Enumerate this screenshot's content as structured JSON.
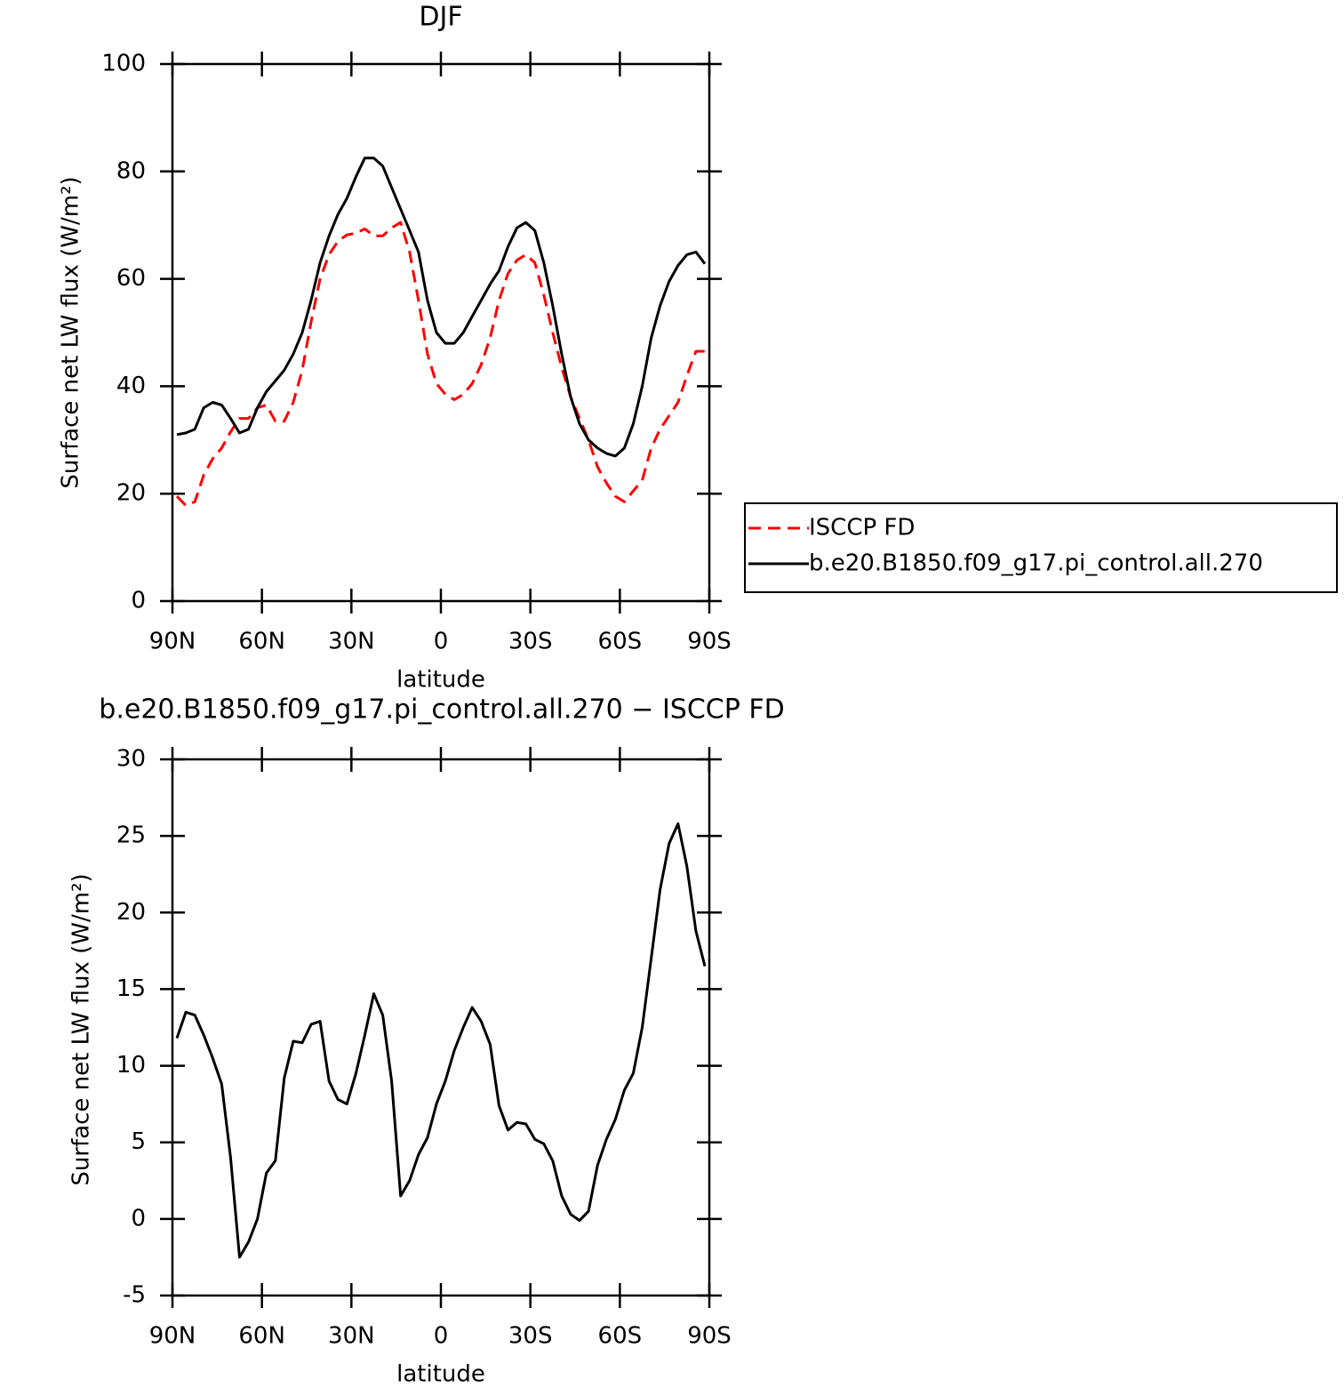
{
  "chart_data": [
    {
      "type": "line",
      "title": "DJF",
      "xlabel": "latitude",
      "ylabel": "Surface net LW flux (W/m²)",
      "x": [
        88.5,
        85.5,
        82.5,
        79.5,
        76.5,
        73.5,
        70.5,
        67.5,
        64.5,
        61.5,
        58.5,
        55.5,
        52.5,
        49.5,
        46.5,
        43.5,
        40.5,
        37.5,
        34.5,
        31.5,
        28.5,
        25.5,
        22.5,
        19.5,
        16.5,
        13.5,
        10.5,
        7.5,
        4.5,
        1.5,
        -1.5,
        -4.5,
        -7.5,
        -10.5,
        -13.5,
        -16.5,
        -19.5,
        -22.5,
        -25.5,
        -28.5,
        -31.5,
        -34.5,
        -37.5,
        -40.5,
        -43.5,
        -46.5,
        -49.5,
        -52.5,
        -55.5,
        -58.5,
        -61.5,
        -64.5,
        -67.5,
        -70.5,
        -73.5,
        -76.5,
        -79.5,
        -82.5,
        -85.5,
        -88.5
      ],
      "series": [
        {
          "name": "ISCCP FD",
          "color": "#ff0000",
          "style": "dashed",
          "values": [
            19.5,
            17.8,
            18.5,
            23.5,
            26.5,
            28.5,
            31.5,
            34,
            34,
            36,
            36.5,
            33.5,
            33.5,
            37,
            43,
            52,
            60,
            64.5,
            67,
            68.2,
            68.5,
            69.3,
            68,
            68,
            69.5,
            70.5,
            65,
            56,
            46,
            40.5,
            38.5,
            37.5,
            38.5,
            40.5,
            44,
            49,
            56,
            61,
            63.5,
            64.5,
            63,
            57,
            50,
            43.5,
            38,
            34,
            30,
            25,
            22,
            19.5,
            18.5,
            20.5,
            22.5,
            28.5,
            32,
            34.5,
            37,
            42,
            46.5,
            46.5
          ]
        },
        {
          "name": "b.e20.B1850.f09_g17.pi_control.all.270",
          "color": "#000000",
          "style": "solid",
          "values": [
            31,
            31.3,
            32,
            36,
            37,
            36.5,
            34,
            31.3,
            32,
            36,
            39,
            41,
            43,
            46,
            50,
            56,
            63,
            68,
            72,
            75,
            79,
            82.5,
            82.5,
            81,
            77,
            73,
            69,
            65,
            56,
            50,
            48,
            48,
            50,
            53,
            56,
            59,
            61.5,
            66,
            69.5,
            70.5,
            69,
            63,
            55,
            46,
            38,
            33,
            30,
            28.5,
            27.5,
            27,
            28.5,
            33,
            40,
            49,
            55,
            59.5,
            62.5,
            64.5,
            65,
            62.8
          ]
        }
      ],
      "xlim": [
        90,
        -90
      ],
      "xticks": [
        {
          "value": 90,
          "label": "90N"
        },
        {
          "value": 60,
          "label": "60N"
        },
        {
          "value": 30,
          "label": "30N"
        },
        0,
        {
          "value": -30,
          "label": "30S"
        },
        {
          "value": -60,
          "label": "60S"
        },
        {
          "value": -90,
          "label": "90S"
        }
      ],
      "ylim": [
        0,
        100
      ],
      "yticks": [
        0,
        20,
        40,
        60,
        80,
        100
      ],
      "legend": "outside-right"
    },
    {
      "type": "line",
      "title": "b.e20.B1850.f09_g17.pi_control.all.270 − ISCCP FD",
      "xlabel": "latitude",
      "ylabel": "Surface net LW flux (W/m²)",
      "x": [
        88.5,
        85.5,
        82.5,
        79.5,
        76.5,
        73.5,
        70.5,
        67.5,
        64.5,
        61.5,
        58.5,
        55.5,
        52.5,
        49.5,
        46.5,
        43.5,
        40.5,
        37.5,
        34.5,
        31.5,
        28.5,
        25.5,
        22.5,
        19.5,
        16.5,
        13.5,
        10.5,
        7.5,
        4.5,
        1.5,
        -1.5,
        -4.5,
        -7.5,
        -10.5,
        -13.5,
        -16.5,
        -19.5,
        -22.5,
        -25.5,
        -28.5,
        -31.5,
        -34.5,
        -37.5,
        -40.5,
        -43.5,
        -46.5,
        -49.5,
        -52.5,
        -55.5,
        -58.5,
        -61.5,
        -64.5,
        -67.5,
        -70.5,
        -73.5,
        -76.5,
        -79.5,
        -82.5,
        -85.5,
        -88.5
      ],
      "series": [
        {
          "color": "#000000",
          "style": "solid",
          "values": [
            11.8,
            13.5,
            13.3,
            12,
            10.5,
            8.8,
            4,
            -2.5,
            -1.5,
            0,
            3,
            3.8,
            9.2,
            11.6,
            11.5,
            12.7,
            12.9,
            9,
            7.8,
            7.5,
            9.5,
            12,
            14.7,
            13.3,
            9,
            1.5,
            2.5,
            4.2,
            5.3,
            7.5,
            9,
            11,
            12.5,
            13.8,
            12.9,
            11.4,
            7.4,
            5.8,
            6.3,
            6.2,
            5.2,
            4.9,
            3.8,
            1.5,
            0.3,
            -0.1,
            0.5,
            3.5,
            5.2,
            6.5,
            8.4,
            9.5,
            12.5,
            17,
            21.5,
            24.5,
            25.8,
            23,
            18.8,
            16.5
          ]
        }
      ],
      "xlim": [
        90,
        -90
      ],
      "xticks": [
        {
          "value": 90,
          "label": "90N"
        },
        {
          "value": 60,
          "label": "60N"
        },
        {
          "value": 30,
          "label": "30N"
        },
        0,
        {
          "value": -30,
          "label": "30S"
        },
        {
          "value": -60,
          "label": "60S"
        },
        {
          "value": -90,
          "label": "90S"
        }
      ],
      "ylim": [
        -5,
        30
      ],
      "yticks": [
        -5,
        0,
        5,
        10,
        15,
        20,
        25,
        30
      ]
    }
  ]
}
